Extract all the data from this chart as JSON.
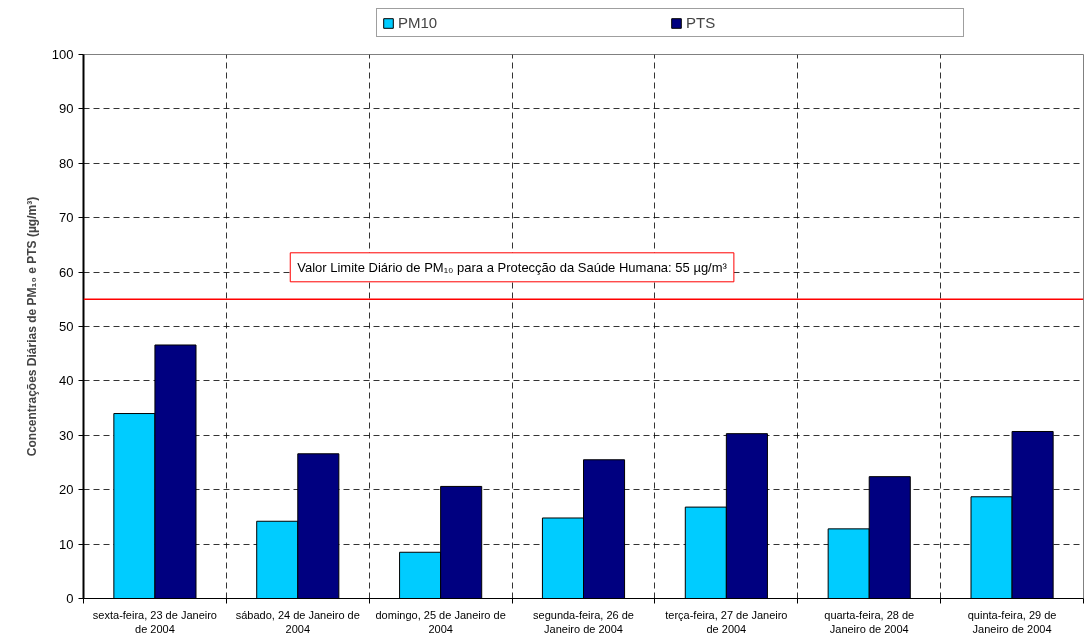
{
  "chart_data": {
    "type": "bar",
    "categories": [
      "sexta-feira, 23 de Janeiro de 2004",
      "sábado, 24 de Janeiro de 2004",
      "domingo, 25 de Janeiro de 2004",
      "segunda-feira, 26 de Janeiro de 2004",
      "terça-feira, 27 de Janeiro de 2004",
      "quarta-feira, 28 de Janeiro de 2004",
      "quinta-feira, 29 de Janeiro de 2004"
    ],
    "series": [
      {
        "name": "PM10",
        "color": "#00ccff",
        "values": [
          34,
          14.2,
          8.5,
          14.8,
          16.8,
          12.8,
          18.7
        ]
      },
      {
        "name": "PTS",
        "color": "#000080",
        "values": [
          46.6,
          26.6,
          20.6,
          25.5,
          30.3,
          22.4,
          30.7
        ]
      }
    ],
    "ylabel": "Concentrações Diárias de PM₁₀ e PTS (µg/m³)",
    "ylim": [
      0,
      100
    ],
    "yticks": [
      0,
      10,
      20,
      30,
      40,
      50,
      60,
      70,
      80,
      90,
      100
    ],
    "grid": true,
    "legend": "top",
    "ref_lines": [
      {
        "axis": "y",
        "value": 55,
        "label": "Valor Limite Diário de PM₁₀ para a Protecção da Saúde Humana: 55 µg/m³",
        "color": "#ff0000",
        "line_style": "solid"
      }
    ]
  }
}
